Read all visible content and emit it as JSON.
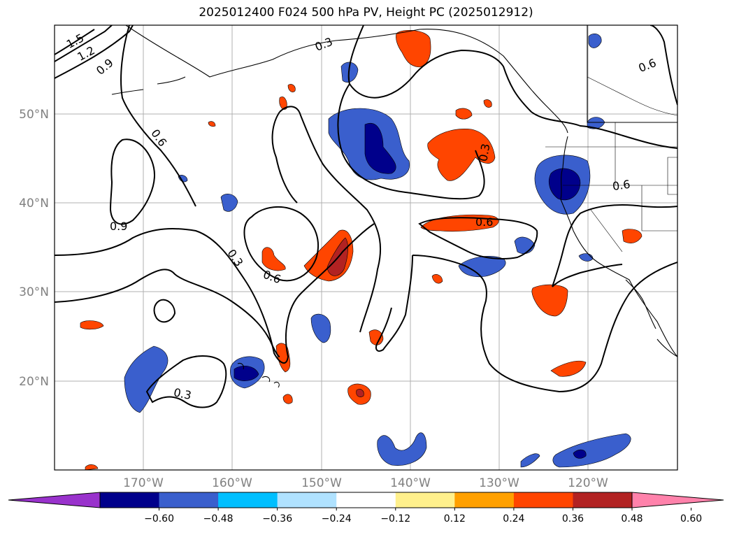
{
  "title": "2025012400 F024 500 hPa PV, Height PC (2025012912)",
  "map": {
    "projection": "PlateCarree",
    "lon_range": [
      -180,
      -110
    ],
    "lat_range": [
      10,
      60
    ],
    "longitude_labels": [
      "170°W",
      "160°W",
      "150°W",
      "140°W",
      "130°W",
      "120°W"
    ],
    "latitude_labels": [
      "50°N",
      "40°N",
      "30°N",
      "20°N"
    ],
    "contour_labels": [
      "1.5",
      "1.2",
      "0.9",
      "0.3",
      "0.6",
      "0.6",
      "0.9",
      "0.3",
      "0.6",
      "0.3",
      "0.6",
      "0.6",
      "0.3"
    ],
    "gridlines": true,
    "coastlines": true,
    "country_borders": true,
    "state_borders": true
  },
  "colorbar": {
    "labels": [
      "−0.60",
      "−0.48",
      "−0.36",
      "−0.24",
      "−0.12",
      "0.12",
      "0.24",
      "0.36",
      "0.48",
      "0.60"
    ],
    "colors": [
      "#9932cc",
      "#00008b",
      "#3a5fcd",
      "#00bfff",
      "#b0e2ff",
      "#ffffff",
      "#fff08c",
      "#ffa000",
      "#ff4500",
      "#b22222",
      "#ff82ab"
    ],
    "extend": "both"
  }
}
